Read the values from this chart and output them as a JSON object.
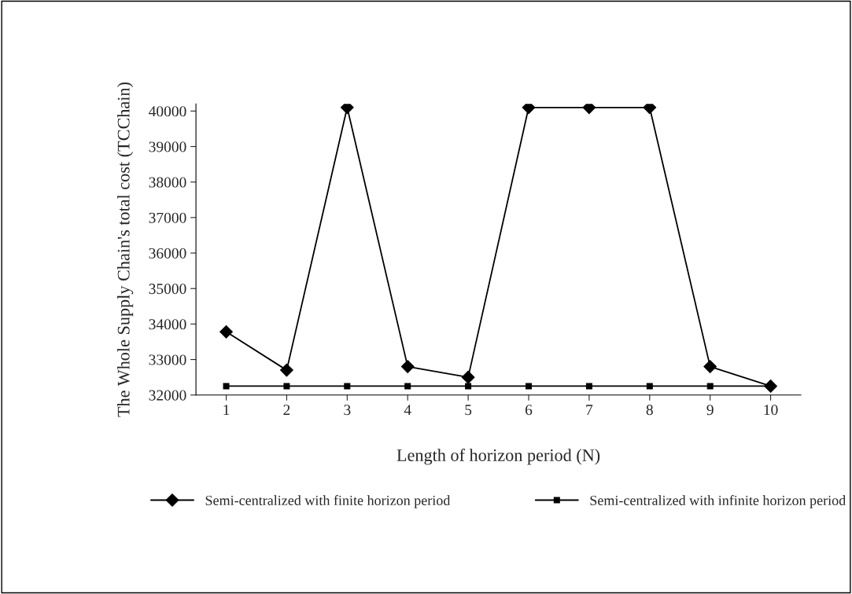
{
  "chart_data": {
    "type": "line",
    "xlabel": "Length of horizon period (N)",
    "ylabel": "The Whole Supply Chain's total cost (TCChain)",
    "categories": [
      "1",
      "2",
      "3",
      "4",
      "5",
      "6",
      "7",
      "8",
      "9",
      "10"
    ],
    "series": [
      {
        "name": "Semi-centralized with finite horizon period",
        "color": "#000000",
        "marker": "diamond",
        "values": [
          33780,
          32700,
          40100,
          32800,
          32500,
          40100,
          40100,
          40100,
          32800,
          32250
        ]
      },
      {
        "name": "Semi-centralized with infinite horizon period",
        "color": "#000000",
        "marker": "square",
        "values": [
          32250,
          32250,
          32250,
          32250,
          32250,
          32250,
          32250,
          32250,
          32250,
          32250
        ]
      }
    ],
    "ylim": [
      32000,
      40200
    ],
    "yticks": [
      32000,
      33000,
      34000,
      35000,
      36000,
      37000,
      38000,
      39000,
      40000
    ],
    "grid": false,
    "legend": "bottom",
    "line_style": "solid"
  }
}
